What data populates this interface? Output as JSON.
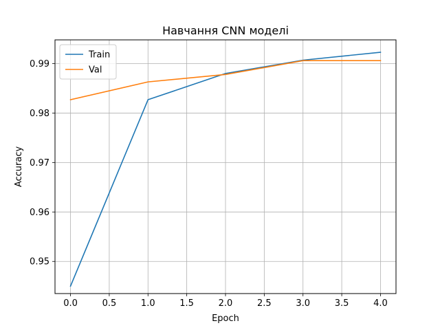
{
  "chart_data": {
    "type": "line",
    "title": "Навчання CNN моделі",
    "xlabel": "Epoch",
    "ylabel": "Accuracy",
    "x": [
      0,
      1,
      2,
      3,
      4
    ],
    "xlim": [
      -0.2,
      4.2
    ],
    "ylim": [
      0.9435,
      0.9948
    ],
    "x_ticks": [
      0.0,
      0.5,
      1.0,
      1.5,
      2.0,
      2.5,
      3.0,
      3.5,
      4.0
    ],
    "x_tick_labels": [
      "0.0",
      "0.5",
      "1.0",
      "1.5",
      "2.0",
      "2.5",
      "3.0",
      "3.5",
      "4.0"
    ],
    "y_ticks": [
      0.95,
      0.96,
      0.97,
      0.98,
      0.99
    ],
    "y_tick_labels": [
      "0.95",
      "0.96",
      "0.97",
      "0.98",
      "0.99"
    ],
    "grid": true,
    "legend_position": "top-left",
    "series": [
      {
        "name": "Train",
        "color": "#1f77b4",
        "values": [
          0.945,
          0.9827,
          0.988,
          0.9907,
          0.9923
        ]
      },
      {
        "name": "Val",
        "color": "#ff7f0e",
        "values": [
          0.9827,
          0.9863,
          0.9878,
          0.9906,
          0.9906
        ]
      }
    ]
  }
}
